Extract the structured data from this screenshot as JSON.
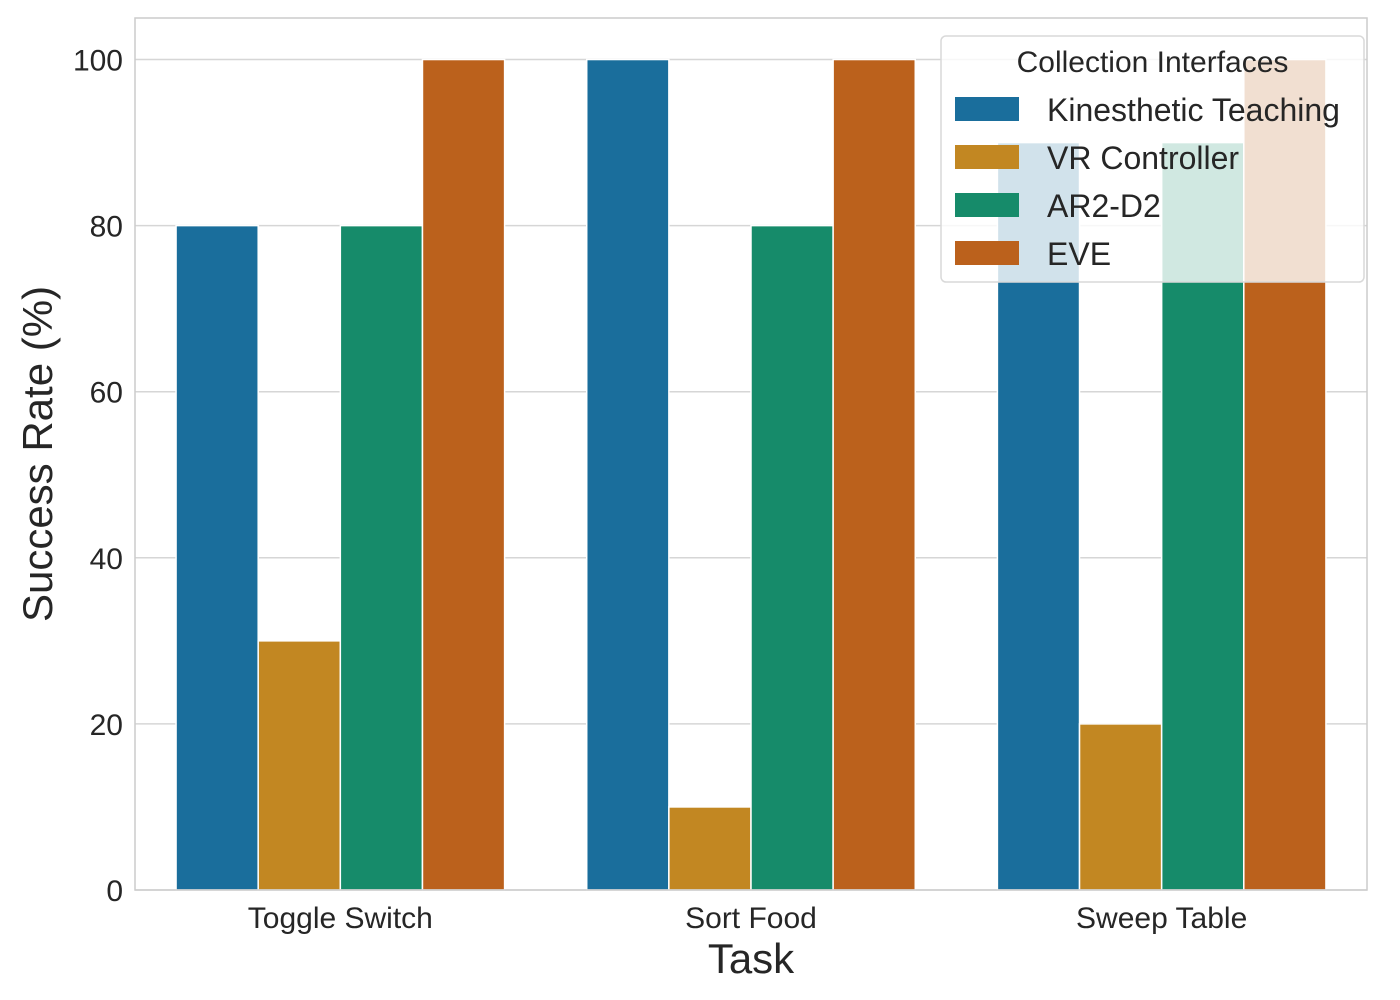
{
  "chart_data": {
    "type": "bar",
    "title": "",
    "xlabel": "Task",
    "ylabel": "Success Rate (%)",
    "categories": [
      "Toggle Switch",
      "Sort Food",
      "Sweep Table"
    ],
    "series": [
      {
        "name": "Kinesthetic Teaching",
        "values": [
          80,
          100,
          90
        ],
        "color": "#1a6e9c"
      },
      {
        "name": "VR Controller",
        "values": [
          30,
          10,
          20
        ],
        "color": "#c28722"
      },
      {
        "name": "AR2-D2",
        "values": [
          80,
          80,
          90
        ],
        "color": "#168b6a"
      },
      {
        "name": "EVE",
        "values": [
          100,
          100,
          100
        ],
        "color": "#bb611c"
      }
    ],
    "ylim": [
      0,
      105
    ],
    "yticks": [
      0,
      20,
      40,
      60,
      80,
      100
    ],
    "grid": true,
    "legend": {
      "title": "Collection Interfaces",
      "position": "top-right"
    }
  }
}
